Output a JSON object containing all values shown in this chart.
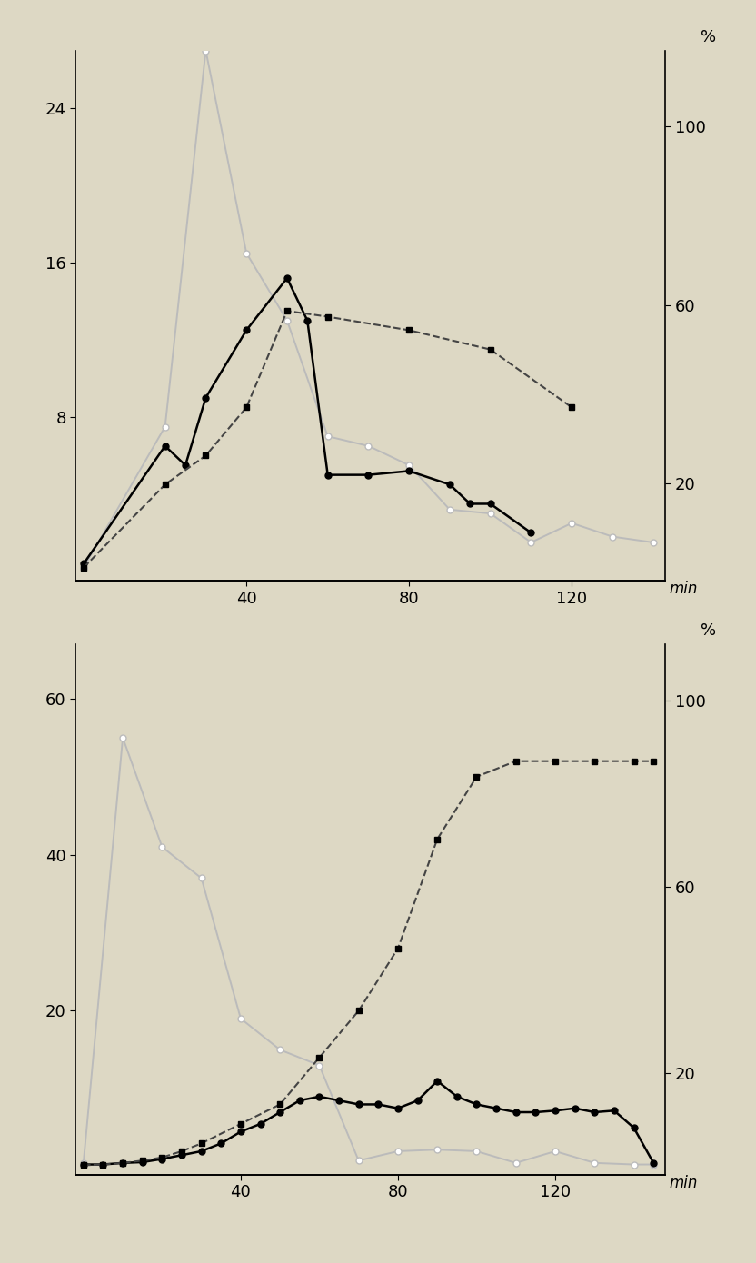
{
  "background_color": "#ddd8c4",
  "top_plot": {
    "left_yticks": [
      8,
      16,
      24
    ],
    "left_ylim": [
      -0.5,
      27
    ],
    "right_yticks": [
      20,
      60,
      100
    ],
    "right_ylim": [
      -1.85,
      117
    ],
    "xticks": [
      40,
      80,
      120
    ],
    "xlim": [
      -2,
      143
    ],
    "series_gray": {
      "x": [
        0,
        20,
        30,
        40,
        50,
        60,
        70,
        80,
        90,
        100,
        110,
        120,
        130,
        140
      ],
      "y": [
        0.2,
        7.5,
        27,
        16.5,
        13,
        7,
        6.5,
        5.5,
        3.2,
        3.0,
        1.5,
        2.5,
        1.8,
        1.5
      ],
      "color": "#bbbbbb",
      "marker": "o",
      "mfc": "white",
      "mec": "#bbbbbb",
      "ls": "-",
      "ms": 5,
      "lw": 1.4
    },
    "series_circle": {
      "x": [
        0,
        20,
        25,
        30,
        40,
        50,
        55,
        60,
        70,
        80,
        90,
        95,
        100,
        110
      ],
      "y": [
        0.4,
        6.5,
        5.5,
        9,
        12.5,
        15.2,
        13.0,
        5.0,
        5.0,
        5.2,
        4.5,
        3.5,
        3.5,
        2.0
      ],
      "color": "black",
      "marker": "o",
      "mfc": "black",
      "mec": "black",
      "ls": "-",
      "ms": 5,
      "lw": 1.8
    },
    "series_square": {
      "x": [
        0,
        20,
        30,
        40,
        50,
        60,
        80,
        100,
        120
      ],
      "y": [
        0.2,
        4.5,
        6.0,
        8.5,
        13.5,
        13.2,
        12.5,
        11.5,
        8.5
      ],
      "color": "#444444",
      "marker": "s",
      "mfc": "black",
      "mec": "black",
      "ls": "--",
      "ms": 5,
      "lw": 1.5
    }
  },
  "bottom_plot": {
    "left_yticks": [
      20,
      40,
      60
    ],
    "left_ylim": [
      -1,
      67
    ],
    "right_yticks": [
      20,
      60,
      100
    ],
    "right_ylim": [
      -1.67,
      112
    ],
    "xticks": [
      40,
      80,
      120
    ],
    "xlim": [
      -2,
      148
    ],
    "series_gray": {
      "x": [
        0,
        10,
        20,
        30,
        40,
        50,
        60,
        70,
        80,
        90,
        100,
        110,
        120,
        130,
        140,
        145
      ],
      "y": [
        0.5,
        55,
        41,
        37,
        19,
        15,
        13,
        0.8,
        2,
        2.2,
        2,
        0.5,
        2,
        0.5,
        0.3,
        0.3
      ],
      "color": "#bbbbbb",
      "marker": "o",
      "mfc": "white",
      "mec": "#bbbbbb",
      "ls": "-",
      "ms": 5,
      "lw": 1.4
    },
    "series_circle": {
      "x": [
        0,
        5,
        10,
        15,
        20,
        25,
        30,
        35,
        40,
        45,
        50,
        55,
        60,
        65,
        70,
        75,
        80,
        85,
        90,
        95,
        100,
        105,
        110,
        115,
        120,
        125,
        130,
        135,
        140,
        145
      ],
      "y": [
        0.3,
        0.3,
        0.5,
        0.6,
        1.0,
        1.5,
        2.0,
        3.0,
        4.5,
        5.5,
        7.0,
        8.5,
        9.0,
        8.5,
        8.0,
        8.0,
        7.5,
        8.5,
        11,
        9,
        8,
        7.5,
        7.0,
        7.0,
        7.2,
        7.5,
        7.0,
        7.2,
        5.0,
        0.5
      ],
      "color": "black",
      "marker": "o",
      "mfc": "black",
      "mec": "black",
      "ls": "-",
      "ms": 5,
      "lw": 1.8
    },
    "series_square": {
      "x": [
        0,
        5,
        10,
        15,
        20,
        25,
        30,
        40,
        50,
        60,
        70,
        80,
        90,
        100,
        110,
        120,
        130,
        140,
        145
      ],
      "y": [
        0.2,
        0.3,
        0.5,
        0.8,
        1.2,
        2.0,
        3.0,
        5.5,
        8.0,
        14,
        20,
        28,
        42,
        50,
        52,
        52,
        52,
        52,
        52
      ],
      "color": "#444444",
      "marker": "s",
      "mfc": "black",
      "mec": "black",
      "ls": "--",
      "ms": 5,
      "lw": 1.5
    }
  }
}
